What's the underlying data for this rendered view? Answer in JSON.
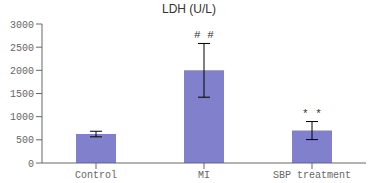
{
  "chart_data": {
    "type": "bar",
    "title": "LDH (U/L)",
    "categories": [
      "Control",
      "MI",
      "SBP treatment"
    ],
    "values": [
      625,
      2000,
      700
    ],
    "errors": [
      60,
      580,
      195
    ],
    "annotations": [
      null,
      "# #",
      "* *"
    ],
    "color": "#8080cc",
    "ylim": [
      0,
      3000
    ],
    "yticks": [
      0,
      500,
      1000,
      1500,
      2000,
      2500,
      3000
    ],
    "grid": false
  }
}
